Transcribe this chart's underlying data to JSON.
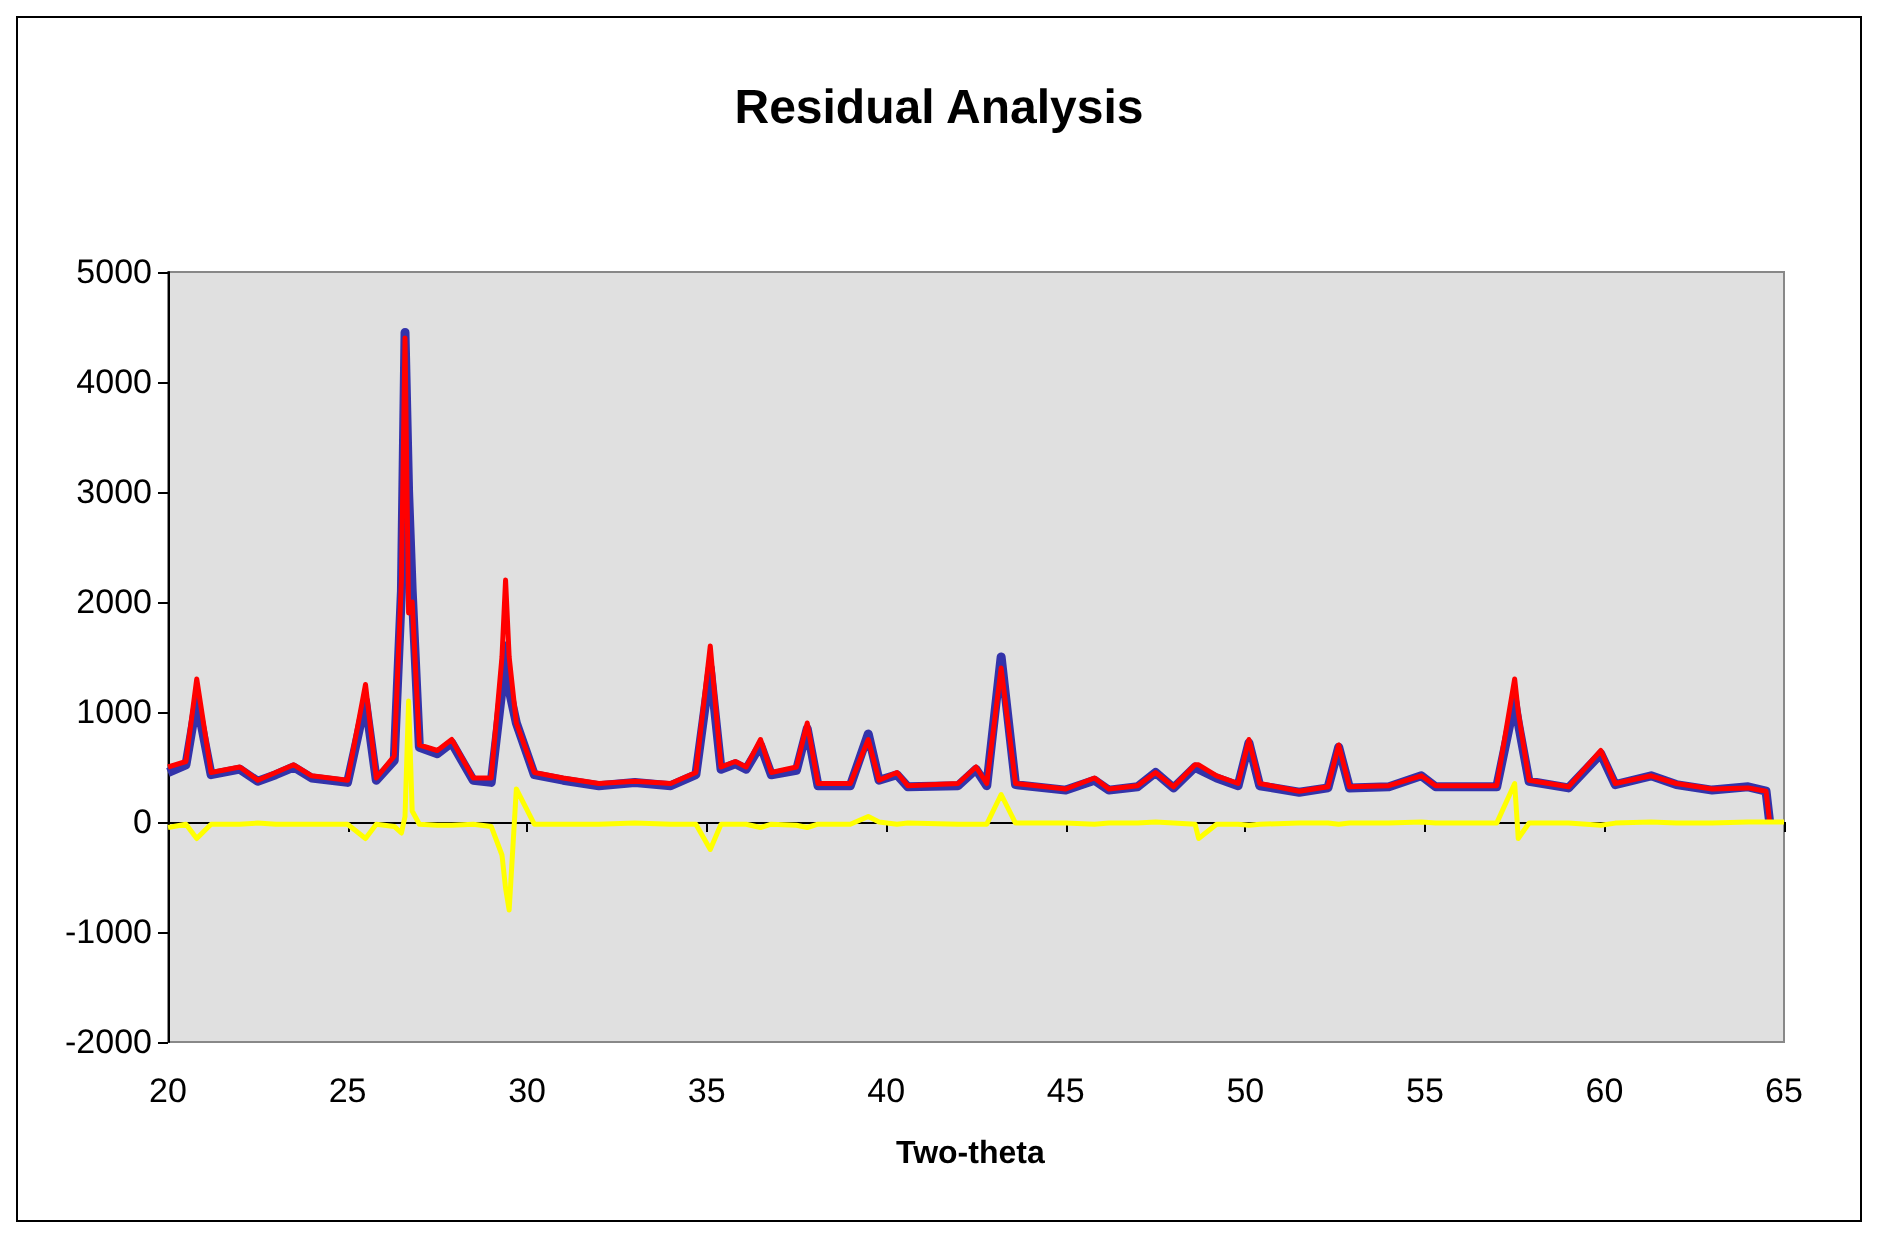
{
  "chart_data": {
    "type": "line",
    "title": "Residual Analysis",
    "xlabel": "Two-theta",
    "x": [
      20,
      20.5,
      20.8,
      21.2,
      22,
      22.5,
      23,
      23.5,
      24,
      25,
      25.5,
      25.8,
      26.3,
      26.5,
      26.6,
      26.7,
      26.8,
      27,
      27.5,
      27.9,
      28.5,
      29,
      29.3,
      29.4,
      29.5,
      29.7,
      30.2,
      31,
      32,
      33,
      34,
      34.7,
      35.1,
      35.4,
      35.8,
      36.1,
      36.5,
      36.8,
      37.5,
      37.8,
      38.1,
      39,
      39.5,
      39.8,
      40.3,
      40.6,
      42,
      42.5,
      42.8,
      43.2,
      43.6,
      45,
      45.8,
      46.2,
      47,
      47.5,
      48,
      48.6,
      48.7,
      49.2,
      49.8,
      50.1,
      50.4,
      51.5,
      52.3,
      52.6,
      52.9,
      54,
      54.9,
      55.3,
      57,
      57.5,
      57.6,
      57.9,
      59,
      59.9,
      60.3,
      61.3,
      62,
      63,
      64,
      64.5,
      64.6,
      65
    ],
    "series": [
      {
        "color": "#3333aa",
        "values": [
          450,
          520,
          1100,
          430,
          480,
          370,
          430,
          500,
          400,
          360,
          1100,
          380,
          560,
          2100,
          4450,
          3000,
          2100,
          680,
          620,
          720,
          380,
          360,
          1200,
          1600,
          1200,
          900,
          430,
          380,
          330,
          360,
          330,
          430,
          1400,
          480,
          530,
          480,
          700,
          430,
          470,
          850,
          330,
          330,
          800,
          380,
          430,
          320,
          330,
          480,
          330,
          1500,
          340,
          290,
          380,
          290,
          320,
          450,
          310,
          500,
          480,
          400,
          330,
          720,
          330,
          270,
          310,
          680,
          310,
          320,
          420,
          320,
          320,
          1100,
          900,
          370,
          310,
          620,
          340,
          420,
          340,
          290,
          320,
          280,
          0,
          null
        ]
      },
      {
        "color": "#ff0000",
        "values": [
          500,
          550,
          1300,
          450,
          500,
          380,
          450,
          520,
          420,
          380,
          1250,
          400,
          600,
          2200,
          4400,
          1900,
          2000,
          700,
          650,
          750,
          400,
          400,
          1500,
          2200,
          1500,
          900,
          450,
          400,
          350,
          370,
          350,
          450,
          1600,
          500,
          550,
          500,
          750,
          450,
          500,
          900,
          350,
          350,
          750,
          380,
          450,
          330,
          350,
          500,
          350,
          1400,
          350,
          300,
          400,
          300,
          330,
          450,
          320,
          520,
          520,
          420,
          350,
          750,
          350,
          280,
          320,
          700,
          320,
          330,
          420,
          330,
          330,
          1300,
          1000,
          380,
          320,
          650,
          350,
          420,
          350,
          300,
          310,
          280,
          0,
          null
        ]
      },
      {
        "color": "#ffff00",
        "values": [
          -50,
          -20,
          -150,
          -20,
          -20,
          -10,
          -20,
          -20,
          -20,
          -20,
          -150,
          -20,
          -40,
          -100,
          50,
          1100,
          100,
          -20,
          -30,
          -30,
          -20,
          -40,
          -300,
          -600,
          -800,
          300,
          -20,
          -20,
          -20,
          -10,
          -20,
          -20,
          -250,
          -20,
          -20,
          -20,
          -50,
          -20,
          -30,
          -50,
          -20,
          -20,
          50,
          0,
          -20,
          -10,
          -20,
          -20,
          -20,
          250,
          -10,
          -10,
          -20,
          -10,
          -10,
          0,
          -10,
          -20,
          -150,
          -20,
          -20,
          -30,
          -20,
          -10,
          -10,
          -20,
          -10,
          -10,
          0,
          -10,
          -10,
          350,
          -150,
          -10,
          -10,
          -30,
          -10,
          0,
          -10,
          -10,
          0,
          0,
          0,
          0
        ]
      }
    ],
    "xlim": [
      20,
      65
    ],
    "xticks": [
      20,
      25,
      30,
      35,
      40,
      45,
      50,
      55,
      60,
      65
    ],
    "ylim": [
      -2000,
      5000
    ],
    "yticks": [
      -2000,
      -1000,
      0,
      1000,
      2000,
      3000,
      4000,
      5000
    ],
    "marker": "none",
    "line_style": "solid"
  }
}
